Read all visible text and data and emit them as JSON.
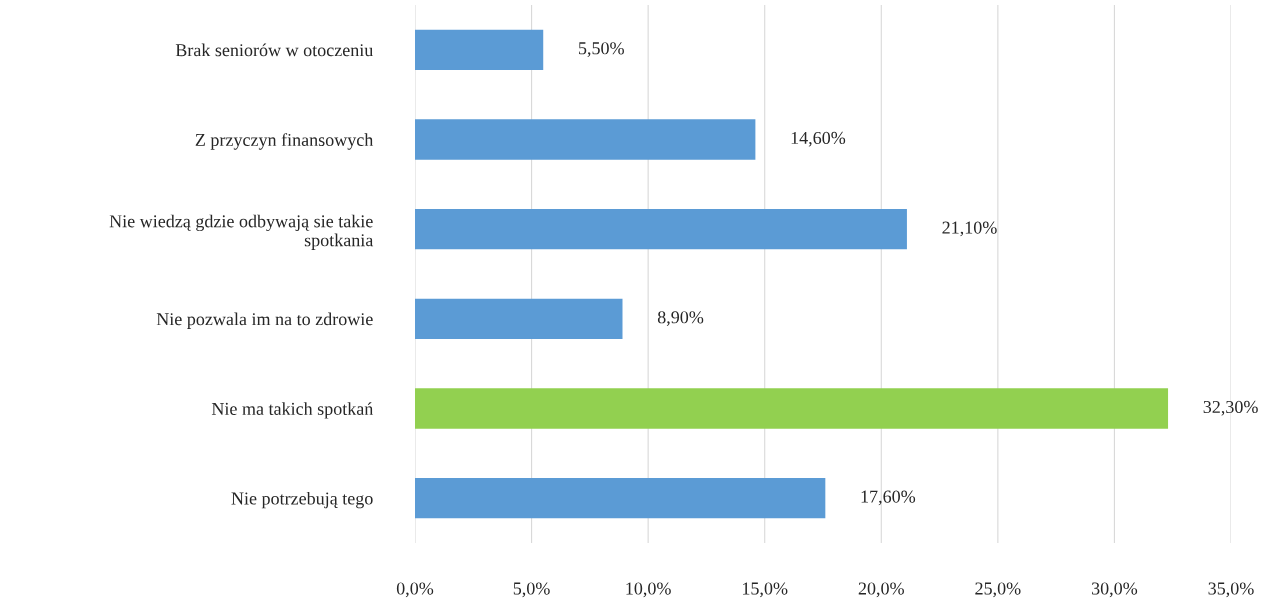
{
  "chart_data": {
    "type": "bar",
    "orientation": "horizontal",
    "categories": [
      "Brak seniorów w otoczeniu",
      "Z przyczyn finansowych",
      "Nie wiedzą gdzie odbywają sie takie spotkania",
      "Nie pozwala im na to zdrowie",
      "Nie ma takich spotkań",
      "Nie potrzebują tego"
    ],
    "values": [
      5.5,
      14.6,
      21.1,
      8.9,
      32.3,
      17.6
    ],
    "colors": [
      "#5b9bd5",
      "#5b9bd5",
      "#5b9bd5",
      "#5b9bd5",
      "#92d050",
      "#5b9bd5"
    ],
    "value_labels": [
      "5,50%",
      "14,60%",
      "21,10%",
      "8,90%",
      "32,30%",
      "17,60%"
    ],
    "xlim": [
      0,
      35
    ],
    "xticks": [
      {
        "value": 0,
        "label": "0,0%"
      },
      {
        "value": 5,
        "label": "5,0%"
      },
      {
        "value": 10,
        "label": "10,0%"
      },
      {
        "value": 15,
        "label": "15,0%"
      },
      {
        "value": 20,
        "label": "20,0%"
      },
      {
        "value": 25,
        "label": "25,0%"
      },
      {
        "value": 30,
        "label": "30,0%"
      },
      {
        "value": 35,
        "label": "35,0%"
      }
    ],
    "grid": "x"
  }
}
